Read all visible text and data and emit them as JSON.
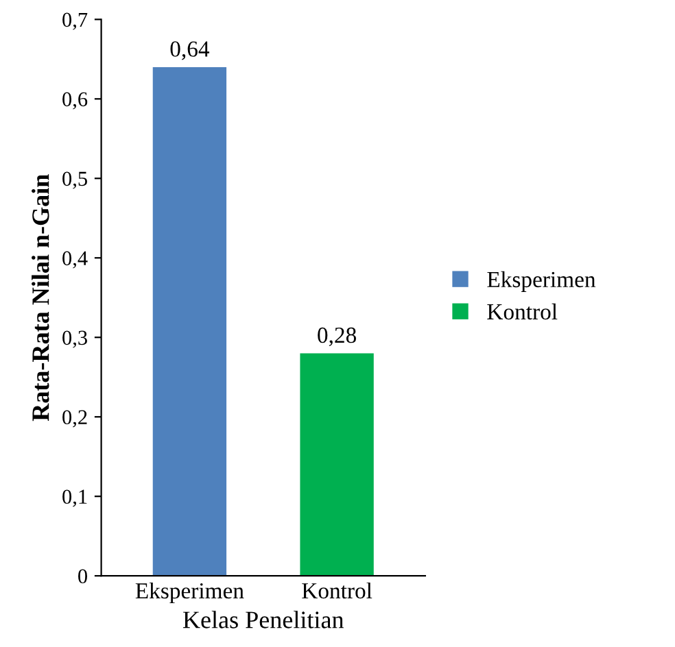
{
  "chart_data": {
    "type": "bar",
    "categories": [
      "Eksperimen",
      "Kontrol"
    ],
    "series": [
      {
        "name": "Eksperimen",
        "color": "#4f81bd",
        "values": [
          0.64,
          null
        ],
        "value_labels": [
          "0,64",
          null
        ]
      },
      {
        "name": "Kontrol",
        "color": "#00b050",
        "values": [
          null,
          0.28
        ],
        "value_labels": [
          null,
          "0,28"
        ]
      }
    ],
    "xlabel": "Kelas Penelitian",
    "ylabel": "Rata-Rata Nilai n-Gain",
    "ylim": [
      0,
      0.7
    ],
    "yticks": [
      0,
      {
        "value": 0.1,
        "label": "0,1"
      },
      {
        "value": 0.2,
        "label": "0,2"
      },
      {
        "value": 0.3,
        "label": "0,3"
      },
      {
        "value": 0.4,
        "label": "0,4"
      },
      {
        "value": 0.5,
        "label": "0,5"
      },
      {
        "value": 0.6,
        "label": "0,6"
      },
      {
        "value": 0.7,
        "label": "0,7"
      }
    ],
    "legend": "right"
  }
}
